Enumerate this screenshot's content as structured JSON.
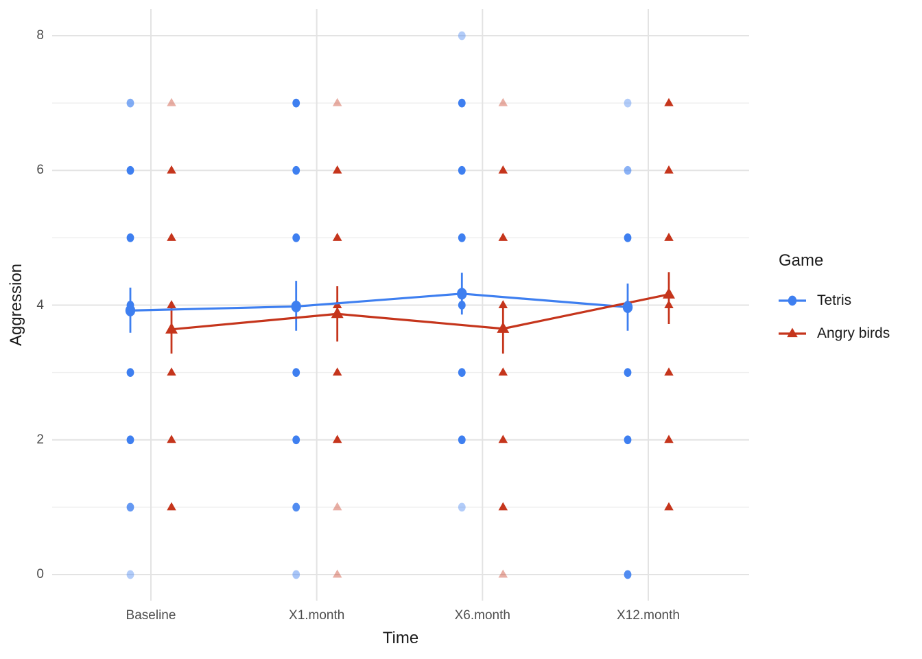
{
  "chart_data": {
    "type": "line",
    "title": "",
    "xlabel": "Time",
    "ylabel": "Aggression",
    "categories": [
      "Baseline",
      "X1.month",
      "X6.month",
      "X12.month"
    ],
    "ytick_labels": [
      "0",
      "2",
      "4",
      "6",
      "8"
    ],
    "ytick_values": [
      0,
      2,
      4,
      6,
      8
    ],
    "minor_ytick_values": [
      1,
      3,
      5,
      7
    ],
    "ylim": [
      -0.4,
      8.4
    ],
    "grid": true,
    "grid_major_color": "#e3e3e3",
    "grid_minor_color": "#efefef",
    "legend": {
      "title": "Game",
      "position": "right",
      "entries": [
        {
          "label": "Tetris",
          "color": "#3e7ff0",
          "marker": "circle"
        },
        {
          "label": "Angry birds",
          "color": "#c5351c",
          "marker": "triangle"
        }
      ]
    },
    "series": [
      {
        "name": "Tetris",
        "marker": "circle",
        "color": "#3e7ff0",
        "dodge": -30,
        "means": [
          3.92,
          3.98,
          4.17,
          3.97
        ],
        "ci_low": [
          3.59,
          3.62,
          3.86,
          3.62
        ],
        "ci_high": [
          4.26,
          4.36,
          4.48,
          4.32
        ],
        "points": [
          {
            "x": 0,
            "y": 7,
            "alpha": 0.65
          },
          {
            "x": 0,
            "y": 6,
            "alpha": 1
          },
          {
            "x": 0,
            "y": 5,
            "alpha": 1
          },
          {
            "x": 0,
            "y": 4,
            "alpha": 1
          },
          {
            "x": 0,
            "y": 3,
            "alpha": 1
          },
          {
            "x": 0,
            "y": 2,
            "alpha": 1
          },
          {
            "x": 0,
            "y": 1,
            "alpha": 0.8
          },
          {
            "x": 0,
            "y": 0,
            "alpha": 0.4
          },
          {
            "x": 1,
            "y": 7,
            "alpha": 1
          },
          {
            "x": 1,
            "y": 6,
            "alpha": 1
          },
          {
            "x": 1,
            "y": 5,
            "alpha": 1
          },
          {
            "x": 1,
            "y": 4,
            "alpha": 1
          },
          {
            "x": 1,
            "y": 3,
            "alpha": 1
          },
          {
            "x": 1,
            "y": 2,
            "alpha": 1
          },
          {
            "x": 1,
            "y": 1,
            "alpha": 0.9
          },
          {
            "x": 1,
            "y": 0,
            "alpha": 0.45
          },
          {
            "x": 2,
            "y": 8,
            "alpha": 0.4
          },
          {
            "x": 2,
            "y": 7,
            "alpha": 1
          },
          {
            "x": 2,
            "y": 6,
            "alpha": 1
          },
          {
            "x": 2,
            "y": 5,
            "alpha": 1
          },
          {
            "x": 2,
            "y": 4,
            "alpha": 1
          },
          {
            "x": 2,
            "y": 3,
            "alpha": 1
          },
          {
            "x": 2,
            "y": 2,
            "alpha": 1
          },
          {
            "x": 2,
            "y": 1,
            "alpha": 0.4
          },
          {
            "x": 3,
            "y": 7,
            "alpha": 0.4
          },
          {
            "x": 3,
            "y": 6,
            "alpha": 0.6
          },
          {
            "x": 3,
            "y": 5,
            "alpha": 1
          },
          {
            "x": 3,
            "y": 4,
            "alpha": 1
          },
          {
            "x": 3,
            "y": 3,
            "alpha": 1
          },
          {
            "x": 3,
            "y": 2,
            "alpha": 1
          },
          {
            "x": 3,
            "y": 0,
            "alpha": 0.9
          }
        ]
      },
      {
        "name": "Angry birds",
        "marker": "triangle",
        "color": "#c5351c",
        "dodge": 30,
        "means": [
          3.64,
          3.87,
          3.65,
          4.16
        ],
        "ci_low": [
          3.28,
          3.46,
          3.28,
          3.72
        ],
        "ci_high": [
          4.02,
          4.28,
          4.05,
          4.49
        ],
        "points": [
          {
            "x": 0,
            "y": 7,
            "alpha": 0.4
          },
          {
            "x": 0,
            "y": 6,
            "alpha": 1
          },
          {
            "x": 0,
            "y": 5,
            "alpha": 1
          },
          {
            "x": 0,
            "y": 4,
            "alpha": 1
          },
          {
            "x": 0,
            "y": 3,
            "alpha": 1
          },
          {
            "x": 0,
            "y": 2,
            "alpha": 1
          },
          {
            "x": 0,
            "y": 1,
            "alpha": 1
          },
          {
            "x": 1,
            "y": 7,
            "alpha": 0.4
          },
          {
            "x": 1,
            "y": 6,
            "alpha": 1
          },
          {
            "x": 1,
            "y": 5,
            "alpha": 1
          },
          {
            "x": 1,
            "y": 4,
            "alpha": 1
          },
          {
            "x": 1,
            "y": 3,
            "alpha": 1
          },
          {
            "x": 1,
            "y": 2,
            "alpha": 1
          },
          {
            "x": 1,
            "y": 1,
            "alpha": 0.4
          },
          {
            "x": 1,
            "y": 0,
            "alpha": 0.4
          },
          {
            "x": 2,
            "y": 7,
            "alpha": 0.4
          },
          {
            "x": 2,
            "y": 6,
            "alpha": 1
          },
          {
            "x": 2,
            "y": 5,
            "alpha": 1
          },
          {
            "x": 2,
            "y": 4,
            "alpha": 1
          },
          {
            "x": 2,
            "y": 3,
            "alpha": 1
          },
          {
            "x": 2,
            "y": 2,
            "alpha": 1
          },
          {
            "x": 2,
            "y": 1,
            "alpha": 1
          },
          {
            "x": 2,
            "y": 0,
            "alpha": 0.4
          },
          {
            "x": 3,
            "y": 7,
            "alpha": 1
          },
          {
            "x": 3,
            "y": 6,
            "alpha": 1
          },
          {
            "x": 3,
            "y": 5,
            "alpha": 1
          },
          {
            "x": 3,
            "y": 4,
            "alpha": 1
          },
          {
            "x": 3,
            "y": 3,
            "alpha": 1
          },
          {
            "x": 3,
            "y": 2,
            "alpha": 1
          },
          {
            "x": 3,
            "y": 1,
            "alpha": 1
          }
        ]
      }
    ]
  }
}
